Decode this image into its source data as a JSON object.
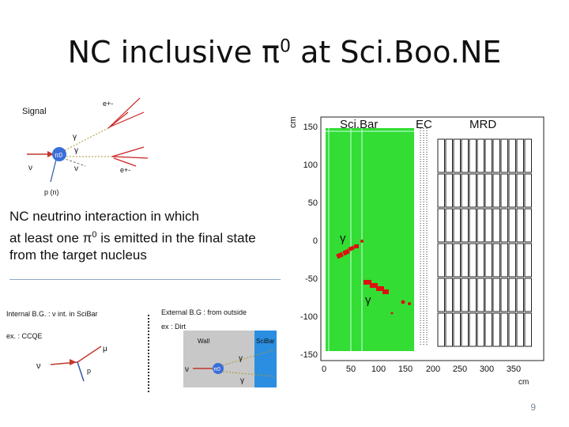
{
  "title": {
    "main": "NC inclusive π",
    "sup": "0",
    "rest": " at Sci.Boo.NE"
  },
  "description": {
    "line1": "NC neutrino interaction in which",
    "line2_a": "at least one π",
    "line2_sup": "0",
    "line2_b": " is emitted in the final state",
    "line3": "from the target nucleus"
  },
  "signal_diagram": {
    "title": "Signal",
    "pi0_label": "π0",
    "gamma1": "γ",
    "gamma2": "γ",
    "nu_in": "ν",
    "nu_out": "ν",
    "eplus_top": "e+-",
    "eplus_bottom": "e+-",
    "nucleon": "p (n)"
  },
  "internal_bg": {
    "title": "Internal B.G. : ν int. in SciBar",
    "example": "ex. : CCQE",
    "nu": "ν",
    "mu": "μ",
    "p": "p"
  },
  "external_bg": {
    "title": "External B.G : from outside",
    "example": "ex : Dirt",
    "wall": "Wall",
    "scibar": "SciBar",
    "nu": "ν",
    "pi0": "π0",
    "gamma1": "γ",
    "gamma2": "γ"
  },
  "event_display": {
    "regions": [
      "Sci.Bar",
      "EC",
      "MRD"
    ],
    "y_unit": "cm",
    "x_unit": "cm",
    "y_ticks": [
      "150",
      "100",
      "50",
      "0",
      "-50",
      "-100",
      "-150"
    ],
    "x_ticks": [
      "0",
      "50",
      "100",
      "150",
      "200",
      "250",
      "300",
      "350"
    ],
    "gamma_label_1": "γ",
    "gamma_label_2": "γ",
    "scibar_color": "#33dd33",
    "hit_color": "#dd1111"
  },
  "page_number": "9"
}
